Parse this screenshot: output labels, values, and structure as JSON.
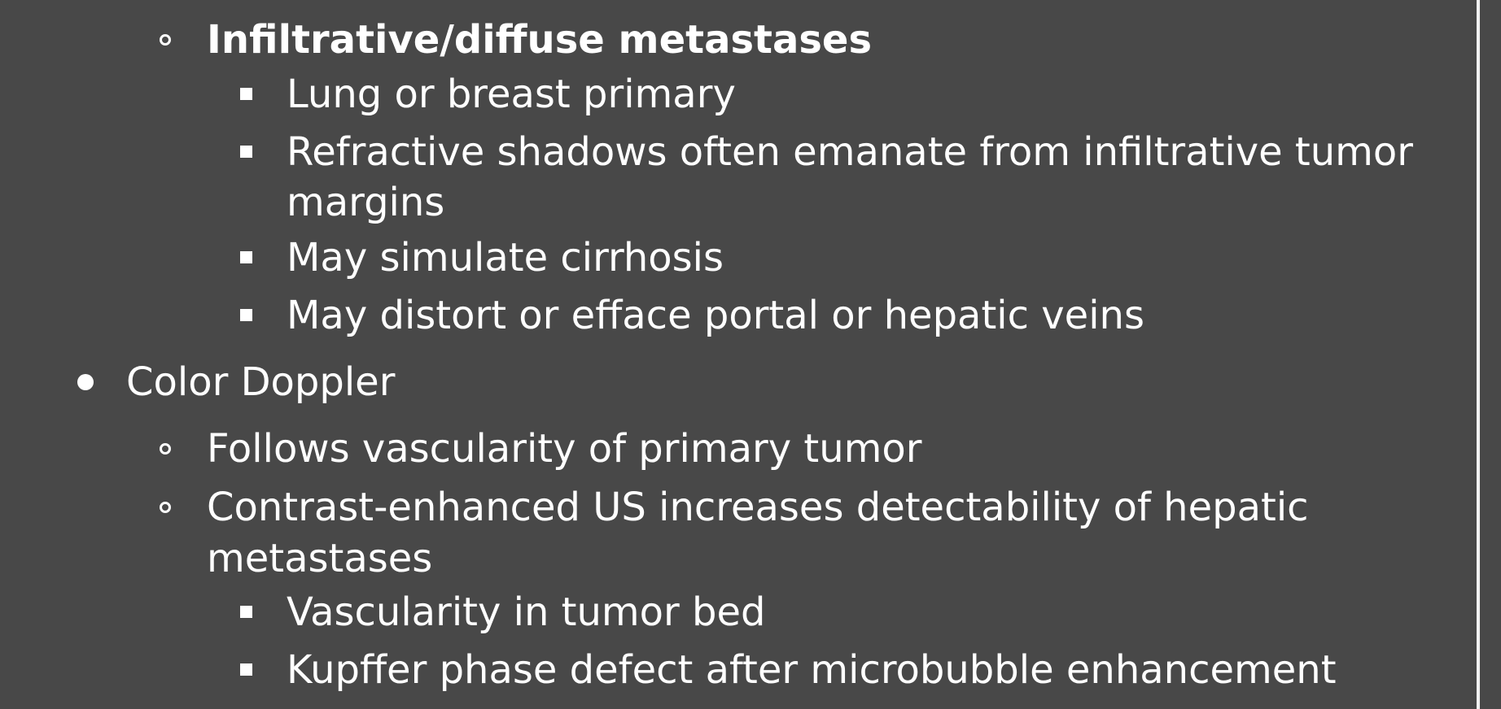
{
  "document": {
    "items": [
      {
        "level": 2,
        "bullet": "circle",
        "bold": true,
        "lines": [
          "Infiltrative/diffuse metastases"
        ]
      },
      {
        "level": 3,
        "bullet": "square",
        "lines": [
          "Lung or breast primary"
        ]
      },
      {
        "level": 3,
        "bullet": "square",
        "lines": [
          "Refractive shadows often emanate from infiltrative tumor",
          "margins"
        ]
      },
      {
        "level": 3,
        "bullet": "square",
        "lines": [
          "May simulate cirrhosis"
        ]
      },
      {
        "level": 3,
        "bullet": "square",
        "lines": [
          "May distort or efface portal or hepatic veins"
        ]
      },
      {
        "level": 1,
        "bullet": "dot",
        "lines": [
          "Color Doppler"
        ]
      },
      {
        "level": 2,
        "bullet": "circle",
        "lines": [
          "Follows vascularity of primary tumor"
        ]
      },
      {
        "level": 2,
        "bullet": "circle",
        "lines": [
          "Contrast-enhanced US increases detectability of hepatic",
          "metastases"
        ]
      },
      {
        "level": 3,
        "bullet": "square",
        "lines": [
          "Vascularity in tumor bed"
        ]
      },
      {
        "level": 3,
        "bullet": "square",
        "lines": [
          "Kupffer phase defect after microbubble enhancement"
        ]
      }
    ]
  }
}
